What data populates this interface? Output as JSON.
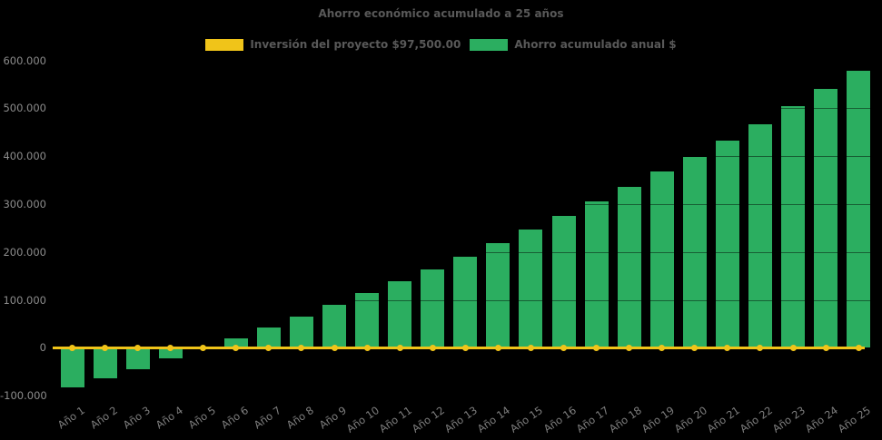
{
  "title": "Ahorro económico acumulado a 25 años",
  "colors": {
    "background": "#000000",
    "bar_green": "#2BAE60",
    "line_yellow": "#F0C419",
    "title_text": "#595959",
    "ytick_text": "#8C8C8C",
    "xtick_text": "#7E7E7E"
  },
  "legend": {
    "position": "top",
    "items": [
      {
        "label": "Inversión del proyecto $97,500.00",
        "color": "#F0C419",
        "series_type": "line"
      },
      {
        "label": "Ahorro acumulado anual $",
        "color": "#2BAE60",
        "series_type": "bar"
      }
    ]
  },
  "chart_data": {
    "type": "bar",
    "title": "Ahorro económico acumulado a 25 años",
    "categories": [
      "Año 1",
      "Año 2",
      "Año 3",
      "Año 4",
      "Año 5",
      "Año 6",
      "Año 7",
      "Año 8",
      "Año 9",
      "Año 10",
      "Año 11",
      "Año 12",
      "Año 13",
      "Año 14",
      "Año 15",
      "Año 16",
      "Año 17",
      "Año 18",
      "Año 19",
      "Año 20",
      "Año 21",
      "Año 22",
      "Año 23",
      "Año 24",
      "Año 25"
    ],
    "series": [
      {
        "name": "Inversión del proyecto $97,500.00",
        "type": "line",
        "color": "#F0C419",
        "marker": "circle",
        "values": [
          0,
          0,
          0,
          0,
          0,
          0,
          0,
          0,
          0,
          0,
          0,
          0,
          0,
          0,
          0,
          0,
          0,
          0,
          0,
          0,
          0,
          0,
          0,
          0,
          0
        ]
      },
      {
        "name": "Ahorro acumulado anual $",
        "type": "bar",
        "color": "#2BAE60",
        "values": [
          -83000,
          -64000,
          -45000,
          -23000,
          -2000,
          19000,
          43000,
          65000,
          89000,
          115000,
          139000,
          163000,
          190000,
          218000,
          247000,
          275000,
          306000,
          336000,
          368000,
          399000,
          433000,
          467000,
          504000,
          540000,
          578000
        ]
      }
    ],
    "xlabel": "",
    "ylabel": "",
    "ylim": [
      -100000,
      600000
    ],
    "ytick_step": 100000,
    "ytick_labels": [
      "600.000",
      "500.000",
      "400.000",
      "300.000",
      "200.000",
      "100.000",
      "0",
      "-100.000"
    ],
    "grid": false,
    "legend_position": "top"
  }
}
